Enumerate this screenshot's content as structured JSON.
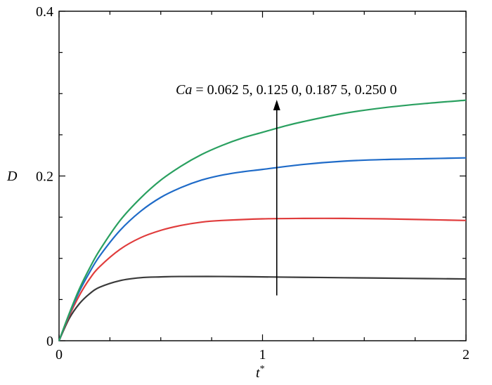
{
  "chart_data": {
    "type": "line",
    "xlabel": "t",
    "xlabel_sup": "*",
    "ylabel": "D",
    "xlim": [
      0,
      2
    ],
    "ylim": [
      0,
      0.4
    ],
    "x_ticks": [
      0,
      1,
      2
    ],
    "x_tick_labels": [
      "0",
      "1",
      "2"
    ],
    "y_ticks": [
      0,
      0.2,
      0.4
    ],
    "y_tick_labels": [
      "0",
      "0.2",
      "0.4"
    ],
    "x_minor_step": 0.25,
    "y_minor_step": 0.05,
    "grid": false,
    "annotation": {
      "prefix": "Ca",
      "text": " = 0.062 5, 0.125 0, 0.187 5, 0.250 0",
      "arrow_x": 1.07,
      "arrow_y_from": 0.055,
      "arrow_y_to": 0.29
    },
    "series": [
      {
        "color": "#3a3a3a",
        "x": [
          0,
          0.05,
          0.1,
          0.15,
          0.2,
          0.3,
          0.4,
          0.5,
          0.6,
          0.8,
          1.0,
          1.2,
          1.4,
          1.6,
          1.8,
          2.0
        ],
        "y": [
          0,
          0.027,
          0.045,
          0.057,
          0.065,
          0.073,
          0.0765,
          0.0775,
          0.078,
          0.078,
          0.0775,
          0.077,
          0.0765,
          0.076,
          0.0755,
          0.075
        ]
      },
      {
        "color": "#e03c3c",
        "x": [
          0,
          0.05,
          0.1,
          0.15,
          0.2,
          0.3,
          0.4,
          0.5,
          0.6,
          0.7,
          0.8,
          1.0,
          1.2,
          1.4,
          1.6,
          1.8,
          2.0
        ],
        "y": [
          0,
          0.03,
          0.055,
          0.075,
          0.09,
          0.111,
          0.125,
          0.134,
          0.14,
          0.144,
          0.146,
          0.148,
          0.1485,
          0.1485,
          0.148,
          0.147,
          0.146
        ]
      },
      {
        "color": "#1f6bc8",
        "x": [
          0,
          0.05,
          0.1,
          0.15,
          0.2,
          0.3,
          0.4,
          0.5,
          0.6,
          0.7,
          0.8,
          0.9,
          1.0,
          1.2,
          1.4,
          1.6,
          1.8,
          2.0
        ],
        "y": [
          0,
          0.032,
          0.06,
          0.083,
          0.103,
          0.134,
          0.157,
          0.174,
          0.186,
          0.195,
          0.201,
          0.205,
          0.208,
          0.214,
          0.218,
          0.22,
          0.221,
          0.222
        ]
      },
      {
        "color": "#2aa060",
        "x": [
          0,
          0.05,
          0.1,
          0.15,
          0.2,
          0.3,
          0.4,
          0.5,
          0.6,
          0.7,
          0.8,
          0.9,
          1.0,
          1.1,
          1.2,
          1.4,
          1.6,
          1.8,
          2.0
        ],
        "y": [
          0,
          0.033,
          0.063,
          0.088,
          0.11,
          0.146,
          0.173,
          0.195,
          0.212,
          0.226,
          0.237,
          0.246,
          0.253,
          0.26,
          0.266,
          0.276,
          0.283,
          0.288,
          0.292
        ]
      }
    ]
  }
}
